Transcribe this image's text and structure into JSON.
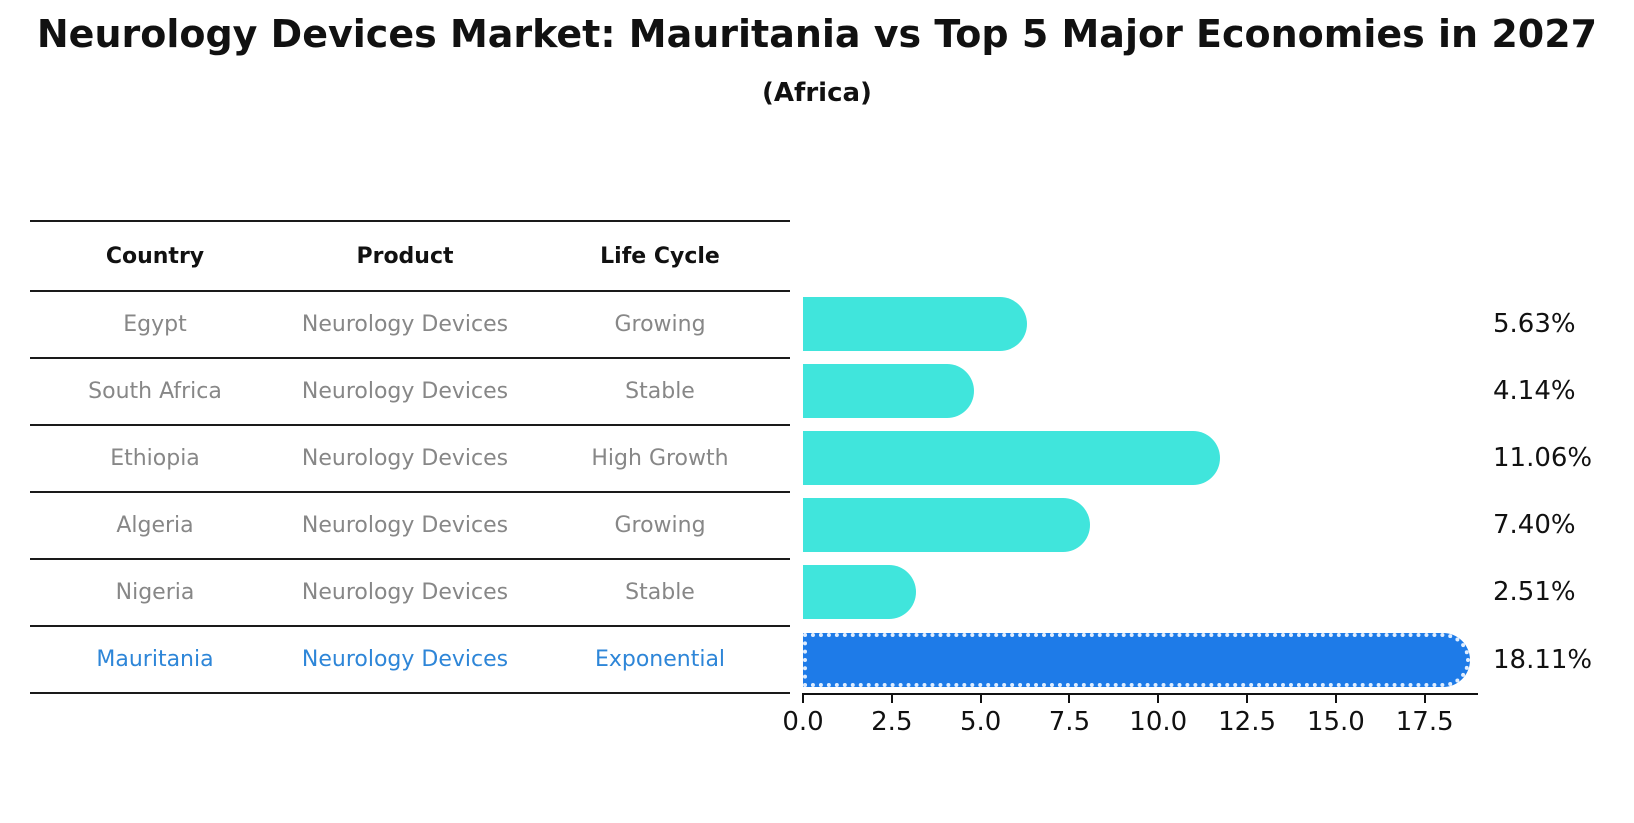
{
  "title": "Neurology Devices Market: Mauritania vs Top 5 Major Economies in 2027",
  "subtitle": "(Africa)",
  "table": {
    "headers": [
      "Country",
      "Product",
      "Life Cycle"
    ],
    "rows": [
      {
        "country": "Egypt",
        "product": "Neurology Devices",
        "life_cycle": "Growing",
        "highlight": false
      },
      {
        "country": "South Africa",
        "product": "Neurology Devices",
        "life_cycle": "Stable",
        "highlight": false
      },
      {
        "country": "Ethiopia",
        "product": "Neurology Devices",
        "life_cycle": "High Growth",
        "highlight": false
      },
      {
        "country": "Algeria",
        "product": "Neurology Devices",
        "life_cycle": "Growing",
        "highlight": false
      },
      {
        "country": "Nigeria",
        "product": "Neurology Devices",
        "life_cycle": "Stable",
        "highlight": false
      },
      {
        "country": "Mauritania",
        "product": "Neurology Devices",
        "life_cycle": "Exponential",
        "highlight": true
      }
    ]
  },
  "chart_data": {
    "type": "bar",
    "orientation": "horizontal",
    "title": "Neurology Devices Market: Mauritania vs Top 5 Major Economies in 2027 (Africa)",
    "xlabel": "",
    "ylabel": "",
    "categories": [
      "Egypt",
      "South Africa",
      "Ethiopia",
      "Algeria",
      "Nigeria",
      "Mauritania"
    ],
    "values": [
      5.63,
      4.14,
      11.06,
      7.4,
      2.51,
      18.11
    ],
    "value_labels": [
      "5.63%",
      "4.14%",
      "11.06%",
      "7.40%",
      "2.51%",
      "18.11%"
    ],
    "x_ticks": [
      "0.0",
      "2.5",
      "5.0",
      "7.5",
      "10.0",
      "12.5",
      "15.0",
      "17.5"
    ],
    "xlim": [
      0,
      19
    ],
    "grid": false,
    "legend": "none",
    "bar_color": "#40E5DC",
    "highlight_bar_color": "#1E7BE8",
    "highlight_index": 5,
    "highlight_text_color": "#2E86D8",
    "row_text_color": "#878787"
  }
}
